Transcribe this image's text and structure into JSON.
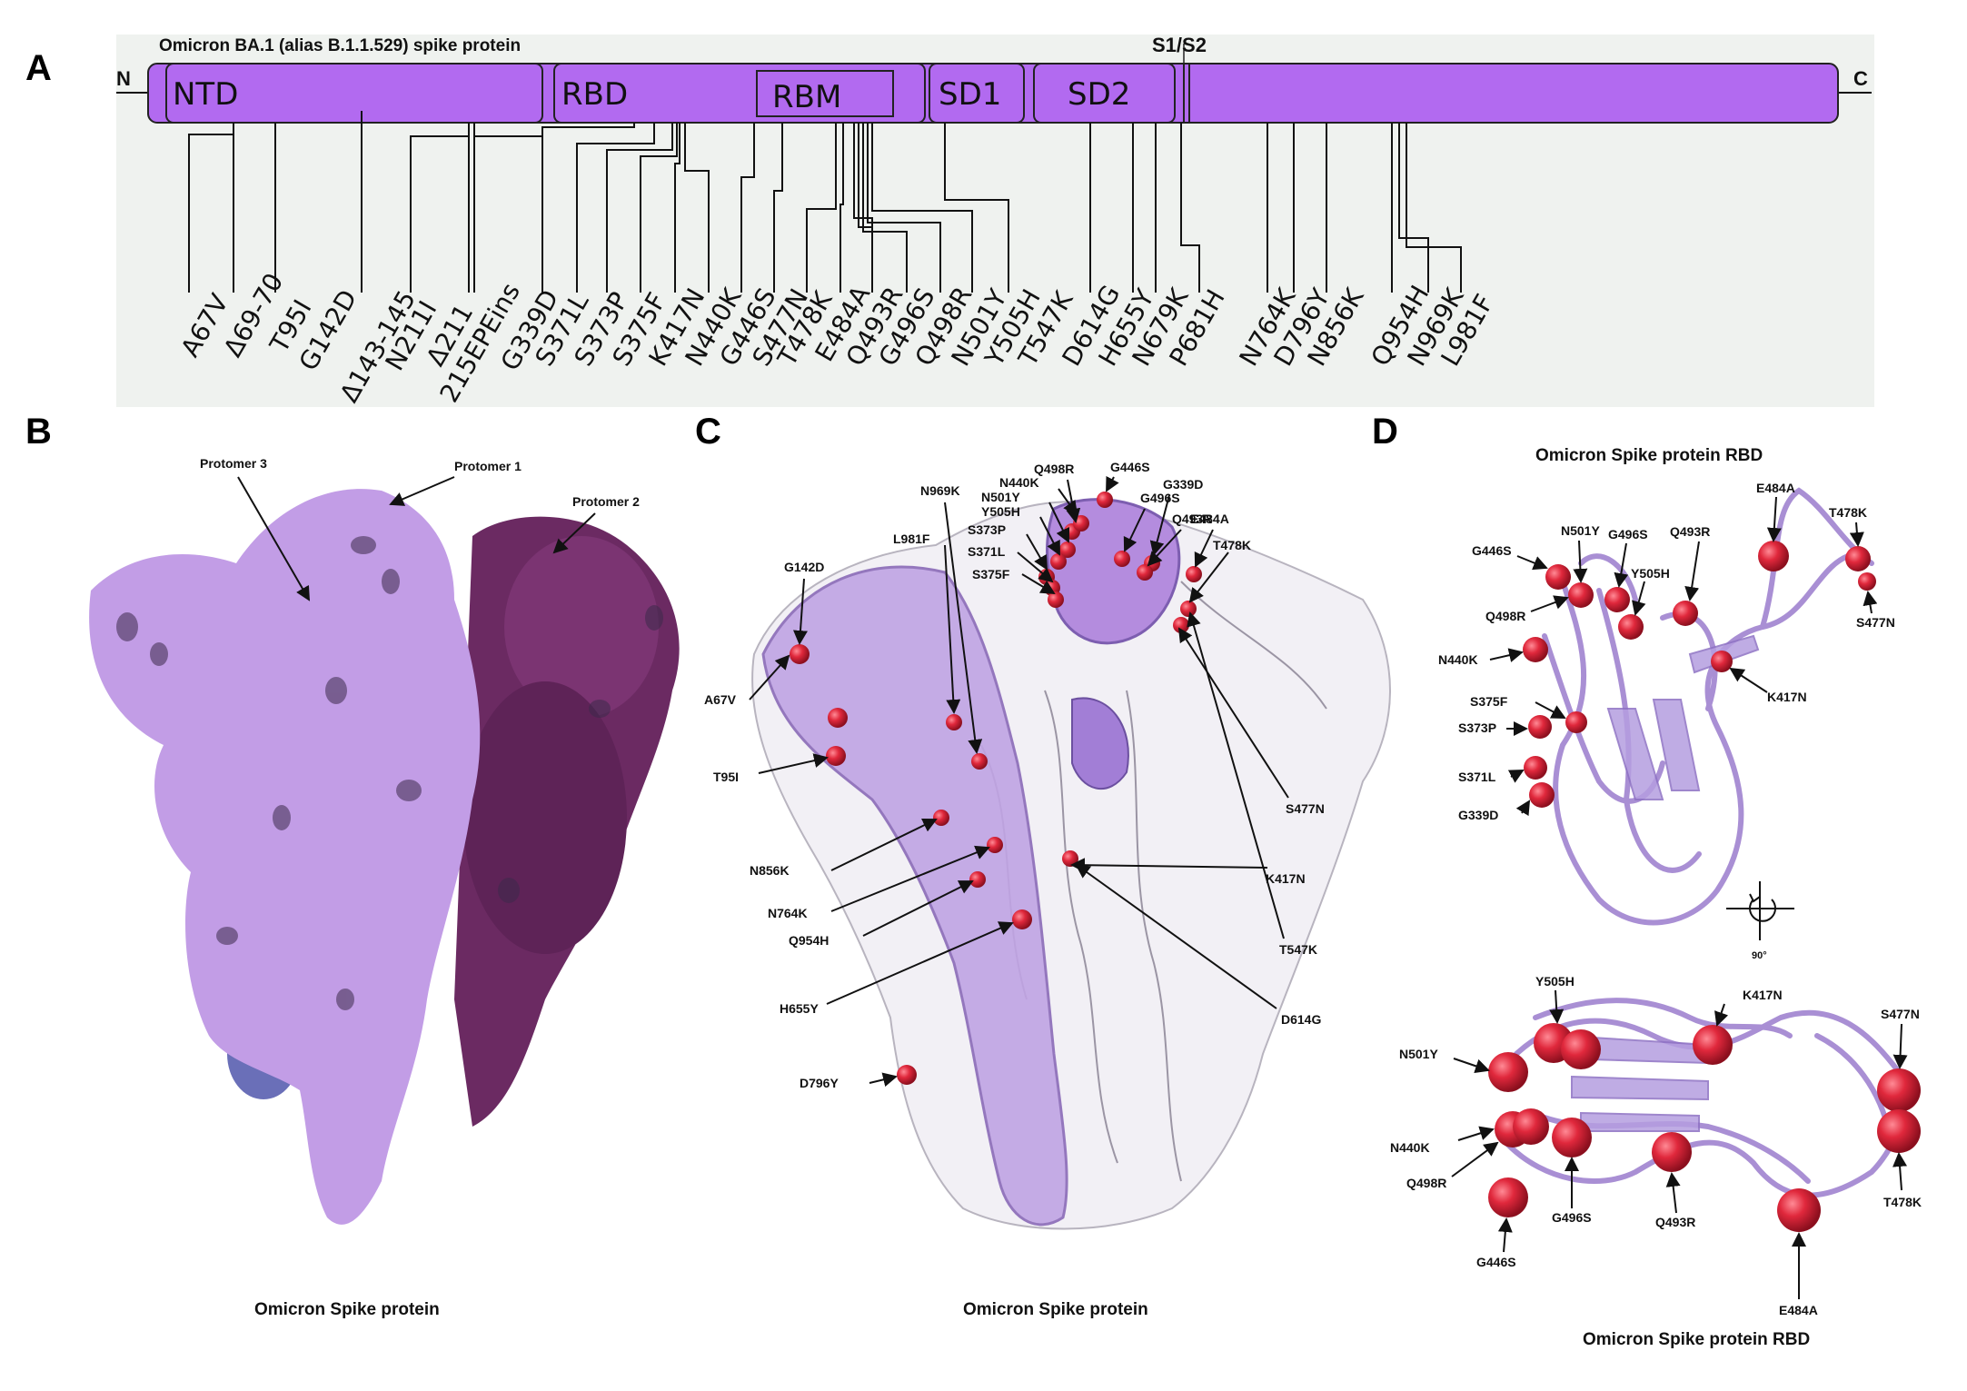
{
  "panelA": {
    "letter": "A",
    "title": "Omicron BA.1 (alias B.1.1.529) spike protein",
    "n_term": "N",
    "c_term": "C",
    "cleavage": "S1/S2",
    "domains": [
      "NTD",
      "RBD",
      "RBM",
      "SD1",
      "SD2"
    ],
    "mutations": [
      "A67V",
      "Δ69-70",
      "T95I",
      "G142D",
      "Δ143-145",
      "N211I",
      "Δ211",
      "215EPEins",
      "G339D",
      "S371L",
      "S373P",
      "S375F",
      "K417N",
      "N440K",
      "G446S",
      "S477N",
      "T478K",
      "E484A",
      "Q493R",
      "G496S",
      "Q498R",
      "N501Y",
      "Y505H",
      "T547K",
      "D614G",
      "H655Y",
      "N679K",
      "P681H",
      "N764K",
      "D796Y",
      "N856K",
      "Q954H",
      "N969K",
      "L981F"
    ]
  },
  "panelB": {
    "letter": "B",
    "caption": "Omicron Spike protein",
    "labels": [
      "Protomer 3",
      "Protomer 1",
      "Protomer 2"
    ]
  },
  "panelC": {
    "letter": "C",
    "caption": "Omicron Spike protein",
    "labels": [
      "Q498R",
      "G446S",
      "N440K",
      "G339D",
      "N501Y",
      "G496S",
      "Y505H",
      "Q493R",
      "S373P",
      "E484A",
      "S371L",
      "T478K",
      "S375F",
      "N969K",
      "L981F",
      "G142D",
      "A67V",
      "T95I",
      "N856K",
      "N764K",
      "Q954H",
      "H655Y",
      "D796Y",
      "S477N",
      "K417N",
      "T547K",
      "D614G"
    ]
  },
  "panelD": {
    "letter": "D",
    "title_top": "Omicron Spike protein RBD",
    "caption_bottom": "Omicron Spike protein RBD",
    "rotation": "90°",
    "top_labels": [
      "E484A",
      "T478K",
      "G446S",
      "N501Y",
      "G496S",
      "Q493R",
      "Y505H",
      "Q498R",
      "S477N",
      "N440K",
      "K417N",
      "S375F",
      "S373P",
      "S371L",
      "G339D"
    ],
    "bottom_labels": [
      "Y505H",
      "K417N",
      "S477N",
      "N501Y",
      "N440K",
      "Q498R",
      "G496S",
      "Q493R",
      "T478K",
      "G446S",
      "E484A"
    ]
  },
  "colors": {
    "domain_fill": "#b26af0",
    "panel_bg": "#eff2ef",
    "mutation_sphere": "#e0283c",
    "protomer_light": "#c29de6",
    "protomer_dark": "#6b2a62",
    "protomer_blue": "#6a6fb8"
  }
}
